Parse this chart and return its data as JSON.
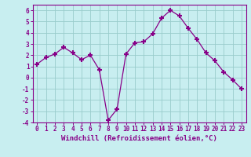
{
  "x": [
    0,
    1,
    2,
    3,
    4,
    5,
    6,
    7,
    8,
    9,
    10,
    11,
    12,
    13,
    14,
    15,
    16,
    17,
    18,
    19,
    20,
    21,
    22,
    23
  ],
  "y": [
    1.2,
    1.8,
    2.1,
    2.7,
    2.2,
    1.6,
    2.0,
    0.7,
    -3.8,
    -2.8,
    2.1,
    3.1,
    3.2,
    3.9,
    5.3,
    6.0,
    5.5,
    4.4,
    3.4,
    2.2,
    1.5,
    0.5,
    -0.2,
    -1.0
  ],
  "color": "#880088",
  "bg_color": "#c8eef0",
  "grid_color": "#99cccc",
  "xlabel": "Windchill (Refroidissement éolien,°C)",
  "ylim": [
    -4,
    6.5
  ],
  "xlim": [
    -0.5,
    23.5
  ],
  "yticks": [
    -4,
    -3,
    -2,
    -1,
    0,
    1,
    2,
    3,
    4,
    5,
    6
  ],
  "xticks": [
    0,
    1,
    2,
    3,
    4,
    5,
    6,
    7,
    8,
    9,
    10,
    11,
    12,
    13,
    14,
    15,
    16,
    17,
    18,
    19,
    20,
    21,
    22,
    23
  ],
  "marker": "+",
  "markersize": 4,
  "markeredgewidth": 1.5,
  "linewidth": 0.9,
  "xlabel_fontsize": 6.5,
  "tick_fontsize": 5.5,
  "tick_color": "#880088",
  "spine_color": "#880088"
}
